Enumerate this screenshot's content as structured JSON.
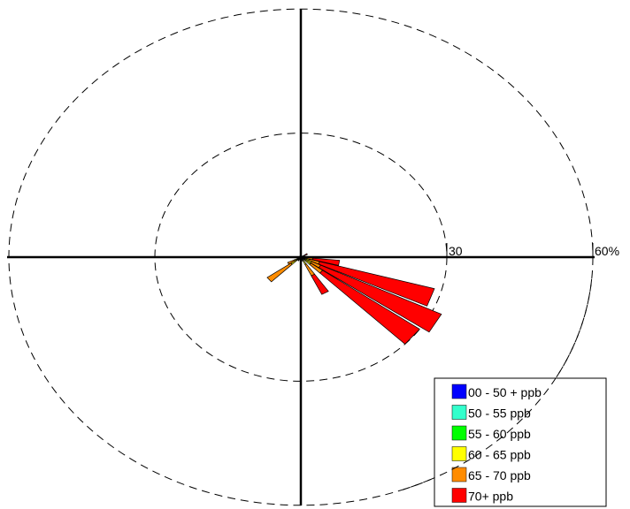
{
  "chart_data": {
    "type": "wind-rose",
    "title": "",
    "radial_unit": "%",
    "radial_ticks": [
      {
        "value": 30,
        "label": "30"
      },
      {
        "value": 60,
        "label": "60%"
      }
    ],
    "grid": "dashed circles",
    "legend_position": "bottom-right",
    "bins": [
      {
        "label": "00 - 50 + ppb",
        "color": "#0000ff"
      },
      {
        "label": "50 - 55 ppb",
        "color": "#33ffcc"
      },
      {
        "label": "55 - 60 ppb",
        "color": "#00ff00"
      },
      {
        "label": "60 - 65 ppb",
        "color": "#ffff00"
      },
      {
        "label": "65 - 70 ppb",
        "color": "#ff8c00"
      },
      {
        "label": "70+ ppb",
        "color": "#ff0000"
      }
    ],
    "sectors": [
      {
        "direction_deg": 100,
        "cumulative_pct": [
          0.2,
          0.4,
          0.6,
          1.2,
          2.5,
          8.0
        ]
      },
      {
        "direction_deg": 110,
        "cumulative_pct": [
          0.2,
          0.4,
          0.7,
          1.8,
          4.0,
          28.5
        ]
      },
      {
        "direction_deg": 120,
        "cumulative_pct": [
          0.2,
          0.5,
          0.8,
          2.5,
          4.5,
          32.0
        ]
      },
      {
        "direction_deg": 130,
        "cumulative_pct": [
          0.2,
          0.5,
          0.8,
          2.5,
          5.5,
          30.0
        ]
      },
      {
        "direction_deg": 150,
        "cumulative_pct": [
          0.2,
          0.4,
          0.7,
          2.0,
          5.0,
          10.0
        ]
      },
      {
        "direction_deg": 170,
        "cumulative_pct": [
          0.1,
          0.2,
          0.3,
          0.5,
          0.8,
          1.0
        ]
      },
      {
        "direction_deg": 210,
        "cumulative_pct": [
          0.1,
          0.2,
          0.3,
          0.6,
          1.0,
          1.0
        ]
      },
      {
        "direction_deg": 230,
        "cumulative_pct": [
          0.2,
          0.4,
          0.7,
          2.5,
          8.5,
          8.5
        ]
      },
      {
        "direction_deg": 240,
        "cumulative_pct": [
          0.1,
          0.2,
          0.4,
          1.5,
          3.0,
          3.0
        ]
      },
      {
        "direction_deg": 340,
        "cumulative_pct": [
          0.1,
          0.1,
          0.2,
          0.3,
          0.4,
          0.4
        ]
      },
      {
        "direction_deg": 20,
        "cumulative_pct": [
          0.1,
          0.1,
          0.2,
          0.3,
          0.4,
          0.4
        ]
      },
      {
        "direction_deg": 60,
        "cumulative_pct": [
          0.1,
          0.2,
          0.3,
          0.5,
          0.8,
          1.5
        ]
      }
    ]
  }
}
